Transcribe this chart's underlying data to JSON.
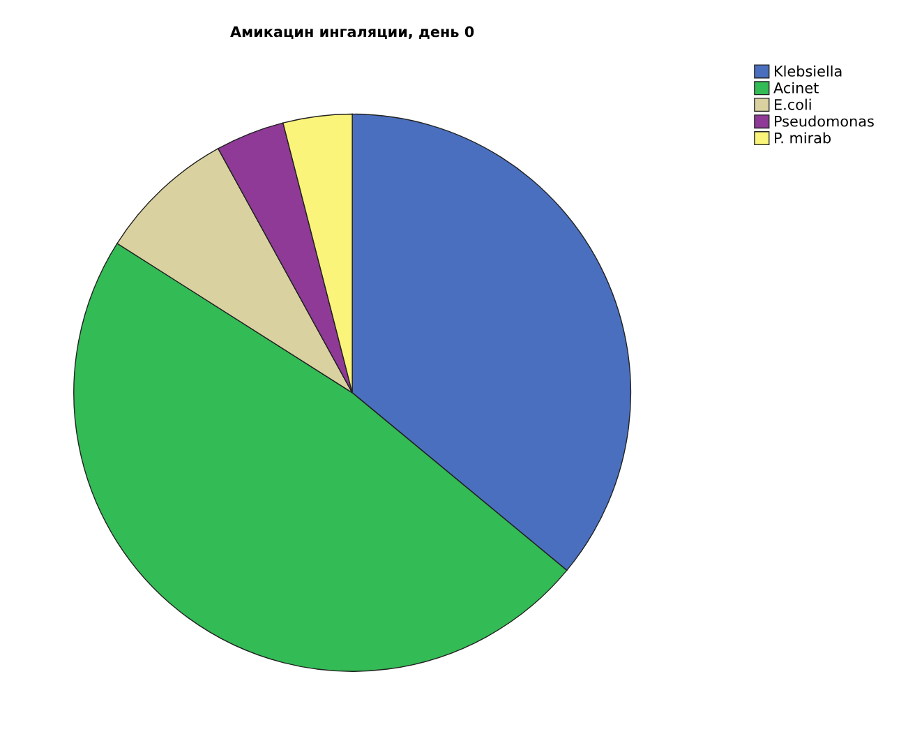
{
  "chart_data": {
    "type": "pie",
    "title": "Амикацин ингаляции, день 0",
    "categories": [
      "Klebsiella",
      "Acinet",
      "E.coli",
      "Pseudomonas",
      "P. mirab"
    ],
    "values": [
      36,
      48,
      8,
      4,
      4
    ],
    "colors": [
      "#4a6fbf",
      "#33bb55",
      "#d9d2a0",
      "#8e3a96",
      "#fbf47a"
    ],
    "legend": "top right"
  }
}
